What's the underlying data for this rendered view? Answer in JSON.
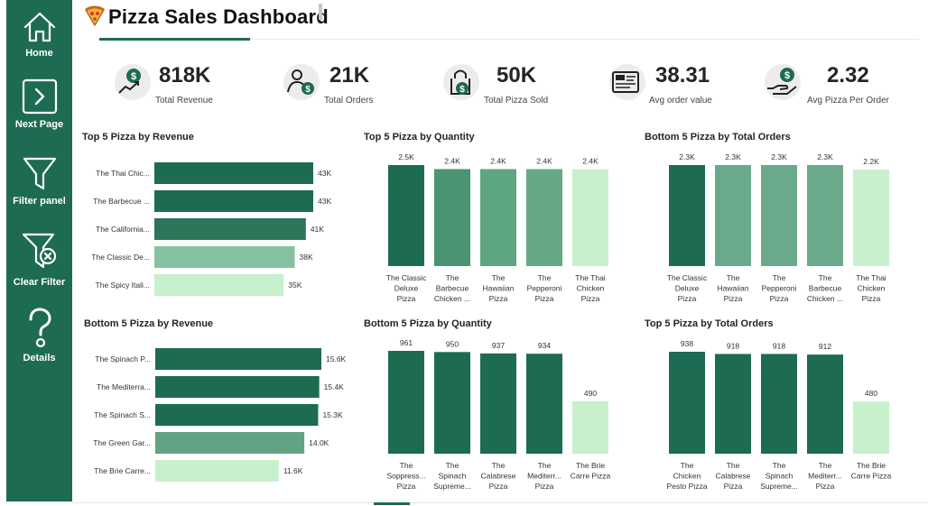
{
  "header": {
    "title": "Pizza Sales Dashboard"
  },
  "sidebar": {
    "items": [
      {
        "label": "Home",
        "icon": "home-icon"
      },
      {
        "label": "Next Page",
        "icon": "next-page-icon"
      },
      {
        "label": "Filter panel",
        "icon": "filter-icon"
      },
      {
        "label": "Clear Filter",
        "icon": "clear-filter-icon"
      },
      {
        "label": "Details",
        "icon": "question-icon"
      }
    ]
  },
  "kpis": [
    {
      "value": "818K",
      "label": "Total Revenue",
      "icon": "revenue-icon"
    },
    {
      "value": "21K",
      "label": "Total Orders",
      "icon": "orders-icon"
    },
    {
      "value": "50K",
      "label": "Total Pizza Sold",
      "icon": "pizza-sold-icon"
    },
    {
      "value": "38.31",
      "label": "Avg order value",
      "icon": "avg-order-icon"
    },
    {
      "value": "2.32",
      "label": "Avg Pizza Per Order",
      "icon": "avg-pizza-icon"
    }
  ],
  "colors": {
    "sidebar": "#1e6b54",
    "accent": "#1e6b54",
    "mid": "#4a9472",
    "light": "#86c2a2",
    "pale": "#c7f1cd"
  },
  "chart_data": [
    {
      "id": "top5-revenue",
      "type": "bar",
      "orientation": "horizontal",
      "title": "Top 5 Pizza by Revenue",
      "categories": [
        "The Thai Chic...",
        "The Barbecue ...",
        "The California...",
        "The Classic De...",
        "The Spicy Itali..."
      ],
      "values": [
        43,
        43,
        41,
        38,
        35
      ],
      "data_labels": [
        "43K",
        "43K",
        "41K",
        "38K",
        "35K"
      ],
      "colors": [
        "#1e6b54",
        "#1e6b54",
        "#2b7659",
        "#86c2a2",
        "#c7f1cd"
      ]
    },
    {
      "id": "top5-quantity",
      "type": "bar",
      "orientation": "vertical",
      "title": "Top 5 Pizza by Quantity",
      "categories": [
        [
          "The Classic",
          "Deluxe",
          "Pizza"
        ],
        [
          "The",
          "Barbecue",
          "Chicken ..."
        ],
        [
          "The",
          "Hawaiian",
          "Pizza"
        ],
        [
          "The",
          "Pepperoni",
          "Pizza"
        ],
        [
          "The Thai",
          "Chicken",
          "Pizza"
        ]
      ],
      "values": [
        2.5,
        2.4,
        2.4,
        2.4,
        2.4
      ],
      "data_labels": [
        "2.5K",
        "2.4K",
        "2.4K",
        "2.4K",
        "2.4K"
      ],
      "colors": [
        "#1e6b54",
        "#4a9472",
        "#5ea682",
        "#66a886",
        "#c7f1cd"
      ]
    },
    {
      "id": "bottom5-orders",
      "type": "bar",
      "orientation": "vertical",
      "title": "Bottom 5 Pizza by Total Orders",
      "categories": [
        [
          "The Classic",
          "Deluxe",
          "Pizza"
        ],
        [
          "The",
          "Hawaiian",
          "Pizza"
        ],
        [
          "The",
          "Pepperoni",
          "Pizza"
        ],
        [
          "The",
          "Barbecue",
          "Chicken ..."
        ],
        [
          "The Thai",
          "Chicken",
          "Pizza"
        ]
      ],
      "values": [
        2.3,
        2.3,
        2.3,
        2.3,
        2.2
      ],
      "data_labels": [
        "2.3K",
        "2.3K",
        "2.3K",
        "2.3K",
        "2.2K"
      ],
      "colors": [
        "#1e6b54",
        "#6aaa8b",
        "#6aaa8b",
        "#6aaa8b",
        "#c7f1cd"
      ]
    },
    {
      "id": "bottom5-revenue",
      "type": "bar",
      "orientation": "horizontal",
      "title": "Bottom 5 Pizza by Revenue",
      "categories": [
        "The Spinach P...",
        "The Mediterra...",
        "The Spinach S...",
        "The Green Gar...",
        "The Brie Carre..."
      ],
      "values": [
        15.6,
        15.4,
        15.3,
        14.0,
        11.6
      ],
      "data_labels": [
        "15.6K",
        "15.4K",
        "15.3K",
        "14.0K",
        "11.6K"
      ],
      "colors": [
        "#1e6b54",
        "#1e6b54",
        "#1e6b54",
        "#62a383",
        "#c7f1cd"
      ]
    },
    {
      "id": "bottom5-quantity",
      "type": "bar",
      "orientation": "vertical",
      "title": "Bottom 5 Pizza by Quantity",
      "categories": [
        [
          "The",
          "Soppress...",
          "Pizza"
        ],
        [
          "The",
          "Spinach",
          "Supreme..."
        ],
        [
          "The",
          "Calabrese",
          "Pizza"
        ],
        [
          "The",
          "Mediterr...",
          "Pizza"
        ],
        [
          "The Brie",
          "Carre Pizza"
        ]
      ],
      "values": [
        961,
        950,
        937,
        934,
        490
      ],
      "data_labels": [
        "961",
        "950",
        "937",
        "934",
        "490"
      ],
      "colors": [
        "#1e6b54",
        "#1e6b54",
        "#1e6b54",
        "#1e6b54",
        "#c7f1cd"
      ]
    },
    {
      "id": "top5-orders",
      "type": "bar",
      "orientation": "vertical",
      "title": "Top 5 Pizza by Total Orders",
      "categories": [
        [
          "The",
          "Chicken",
          "Pesto Pizza"
        ],
        [
          "The",
          "Calabrese",
          "Pizza"
        ],
        [
          "The",
          "Spinach",
          "Supreme..."
        ],
        [
          "The",
          "Mediterr...",
          "Pizza"
        ],
        [
          "The Brie",
          "Carre Pizza"
        ]
      ],
      "values": [
        938,
        918,
        918,
        912,
        480
      ],
      "data_labels": [
        "938",
        "918",
        "918",
        "912",
        "480"
      ],
      "colors": [
        "#1e6b54",
        "#1e6b54",
        "#1e6b54",
        "#1e6b54",
        "#c7f1cd"
      ]
    }
  ]
}
